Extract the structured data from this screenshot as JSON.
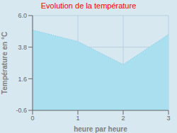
{
  "chart_data": {
    "type": "area",
    "title": "Evolution de la température",
    "xlabel": "heure par heure",
    "ylabel": "Température en °C",
    "x": [
      0,
      1,
      2,
      3
    ],
    "values": [
      5.0,
      4.2,
      2.6,
      4.7
    ],
    "xlim": [
      0,
      3
    ],
    "ylim": [
      -0.6,
      6.0
    ],
    "xticks": [
      0,
      1,
      2,
      3
    ],
    "yticks": [
      -0.6,
      1.6,
      3.8,
      {
        "value": 6.0,
        "label": "6.0"
      }
    ],
    "color": "#aadff0",
    "line_style": "dotted",
    "grid": true
  }
}
